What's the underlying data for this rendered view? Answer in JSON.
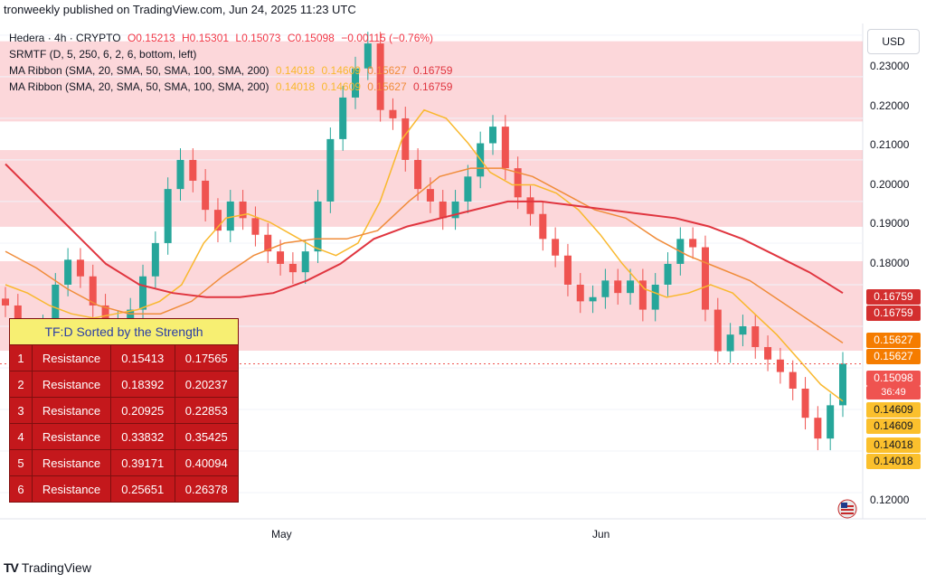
{
  "header": {
    "text": "tronweekly published on TradingView.com, Jun 24, 2025 11:23 UTC"
  },
  "legend": {
    "symbol": "Hedera · 4h · CRYPTO",
    "open": "O0.15213",
    "high": "H0.15301",
    "low": "L0.15073",
    "close": "C0.15098",
    "change": "−0.00115 (−0.76%)",
    "indicator1": "SRMTF (D, 5, 250, 6, 2, 6, bottom, left)",
    "ribbon1": "MA Ribbon (SMA, 20, SMA, 50, SMA, 100, SMA, 200)",
    "ribbon2": "MA Ribbon (SMA, 20, SMA, 50, SMA, 100, SMA, 200)",
    "ribbon_values": [
      "0.14018",
      "0.14609",
      "0.15627",
      "0.16759"
    ]
  },
  "currency_button": "USD",
  "price_scale": [
    "0.23000",
    "0.22000",
    "0.21000",
    "0.20000",
    "0.19000",
    "0.18000",
    "0.12000"
  ],
  "price_tags": [
    {
      "value": "0.16759",
      "color": "#d32f2f"
    },
    {
      "value": "0.16759",
      "color": "#d32f2f"
    },
    {
      "value": "0.15627",
      "color": "#f57c00"
    },
    {
      "value": "0.15627",
      "color": "#f57c00"
    },
    {
      "value": "0.15098",
      "color": "#ef5350"
    },
    {
      "value": "36:49",
      "color": "#ef5350"
    },
    {
      "value": "0.14609",
      "color": "#fbc02d"
    },
    {
      "value": "0.14609",
      "color": "#fbc02d"
    },
    {
      "value": "0.14018",
      "color": "#fbc02d"
    },
    {
      "value": "0.14018",
      "color": "#fbc02d"
    }
  ],
  "time_axis": [
    "May",
    "Jun"
  ],
  "sr_table": {
    "title": "TF:D Sorted by the Strength",
    "rows": [
      {
        "idx": "1",
        "label": "Resistance",
        "low": "0.15413",
        "high": "0.17565"
      },
      {
        "idx": "2",
        "label": "Resistance",
        "low": "0.18392",
        "high": "0.20237"
      },
      {
        "idx": "3",
        "label": "Resistance",
        "low": "0.20925",
        "high": "0.22853"
      },
      {
        "idx": "4",
        "label": "Resistance",
        "low": "0.33832",
        "high": "0.35425"
      },
      {
        "idx": "5",
        "label": "Resistance",
        "low": "0.39171",
        "high": "0.40094"
      },
      {
        "idx": "6",
        "label": "Resistance",
        "low": "0.25651",
        "high": "0.26378"
      }
    ]
  },
  "footer": {
    "logo_text": "TradingView"
  },
  "chart_data": {
    "type": "line",
    "title": "Hedera · 4h · CRYPTO",
    "ylim": [
      0.115,
      0.235
    ],
    "bands": [
      {
        "low": 0.15413,
        "high": 0.17565
      },
      {
        "low": 0.18392,
        "high": 0.20237
      },
      {
        "low": 0.20925,
        "high": 0.22853
      }
    ],
    "close_price": 0.15098,
    "price_series": [
      0.165,
      0.158,
      0.152,
      0.16,
      0.17,
      0.176,
      0.172,
      0.165,
      0.16,
      0.161,
      0.164,
      0.172,
      0.18,
      0.193,
      0.2,
      0.195,
      0.188,
      0.183,
      0.19,
      0.186,
      0.182,
      0.178,
      0.175,
      0.173,
      0.178,
      0.19,
      0.205,
      0.215,
      0.222,
      0.228,
      0.212,
      0.21,
      0.2,
      0.193,
      0.19,
      0.186,
      0.19,
      0.196,
      0.204,
      0.208,
      0.198,
      0.191,
      0.187,
      0.181,
      0.177,
      0.17,
      0.166,
      0.167,
      0.171,
      0.168,
      0.171,
      0.164,
      0.17,
      0.175,
      0.181,
      0.179,
      0.164,
      0.154,
      0.158,
      0.16,
      0.155,
      0.152,
      0.149,
      0.145,
      0.138,
      0.133,
      0.141,
      0.151
    ],
    "series": [
      {
        "name": "SMA 20",
        "color": "#f9b82e",
        "values": [
          0.17,
          0.168,
          0.165,
          0.163,
          0.162,
          0.163,
          0.164,
          0.166,
          0.17,
          0.18,
          0.186,
          0.187,
          0.185,
          0.182,
          0.179,
          0.177,
          0.18,
          0.19,
          0.205,
          0.212,
          0.21,
          0.204,
          0.197,
          0.194,
          0.194,
          0.192,
          0.188,
          0.182,
          0.175,
          0.169,
          0.167,
          0.168,
          0.17,
          0.168,
          0.163,
          0.158,
          0.152,
          0.146,
          0.142
        ]
      },
      {
        "name": "SMA 50",
        "color": "#f08c3a",
        "values": [
          0.178,
          0.174,
          0.169,
          0.165,
          0.163,
          0.163,
          0.166,
          0.172,
          0.177,
          0.18,
          0.181,
          0.181,
          0.183,
          0.19,
          0.196,
          0.198,
          0.198,
          0.196,
          0.192,
          0.188,
          0.186,
          0.181,
          0.177,
          0.174,
          0.171,
          0.166,
          0.161,
          0.156
        ]
      },
      {
        "name": "SMA 200",
        "color": "#e0353f",
        "values": [
          0.199,
          0.191,
          0.183,
          0.175,
          0.17,
          0.168,
          0.167,
          0.167,
          0.168,
          0.171,
          0.175,
          0.181,
          0.184,
          0.186,
          0.188,
          0.19,
          0.19,
          0.189,
          0.188,
          0.187,
          0.186,
          0.184,
          0.181,
          0.177,
          0.173,
          0.168
        ]
      }
    ]
  }
}
